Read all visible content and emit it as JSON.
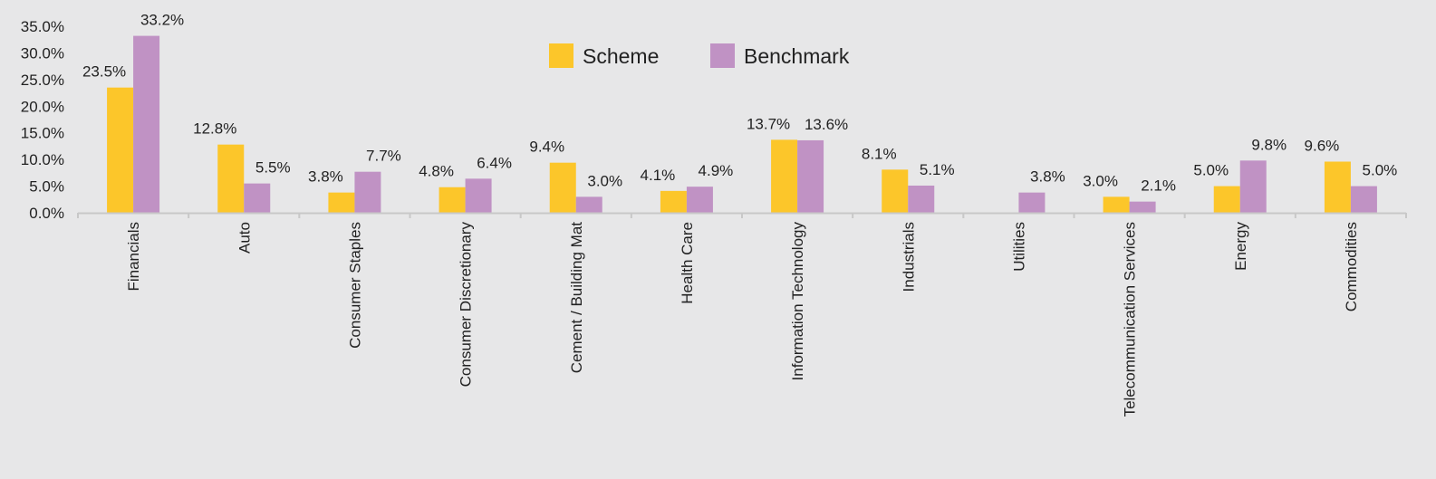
{
  "chart_data": {
    "type": "bar",
    "categories": [
      "Financials",
      "Auto",
      "Consumer Staples",
      "Consumer Discretionary",
      "Cement / Building Mat",
      "Health Care",
      "Information Technology",
      "Industrials",
      "Utilities",
      "Telecommunication Services",
      "Energy",
      "Commodities"
    ],
    "series": [
      {
        "name": "Scheme",
        "color": "#fcc62a",
        "values": [
          23.5,
          12.8,
          3.8,
          4.8,
          9.4,
          4.1,
          13.7,
          8.1,
          null,
          3.0,
          5.0,
          9.6
        ],
        "labels": [
          "23.5%",
          "12.8%",
          "3.8%",
          "4.8%",
          "9.4%",
          "4.1%",
          "13.7%",
          "8.1%",
          "",
          "3.0%",
          "5.0%",
          "9.6%"
        ]
      },
      {
        "name": "Benchmark",
        "color": "#c092c4",
        "values": [
          33.2,
          5.5,
          7.7,
          6.4,
          3.0,
          4.9,
          13.6,
          5.1,
          3.8,
          2.1,
          9.8,
          5.0
        ],
        "labels": [
          "33.2%",
          "5.5%",
          "7.7%",
          "6.4%",
          "3.0%",
          "4.9%",
          "13.6%",
          "5.1%",
          "3.8%",
          "2.1%",
          "9.8%",
          "5.0%"
        ]
      }
    ],
    "yticks": [
      0,
      5,
      10,
      15,
      20,
      25,
      30,
      35
    ],
    "ytick_labels": [
      "0.0%",
      "5.0%",
      "10.0%",
      "15.0%",
      "20.0%",
      "25.0%",
      "30.0%",
      "35.0%"
    ],
    "ylim": [
      0,
      35
    ],
    "title": "",
    "xlabel": "",
    "ylabel": "",
    "legend_position": "top-center",
    "grid": false
  }
}
